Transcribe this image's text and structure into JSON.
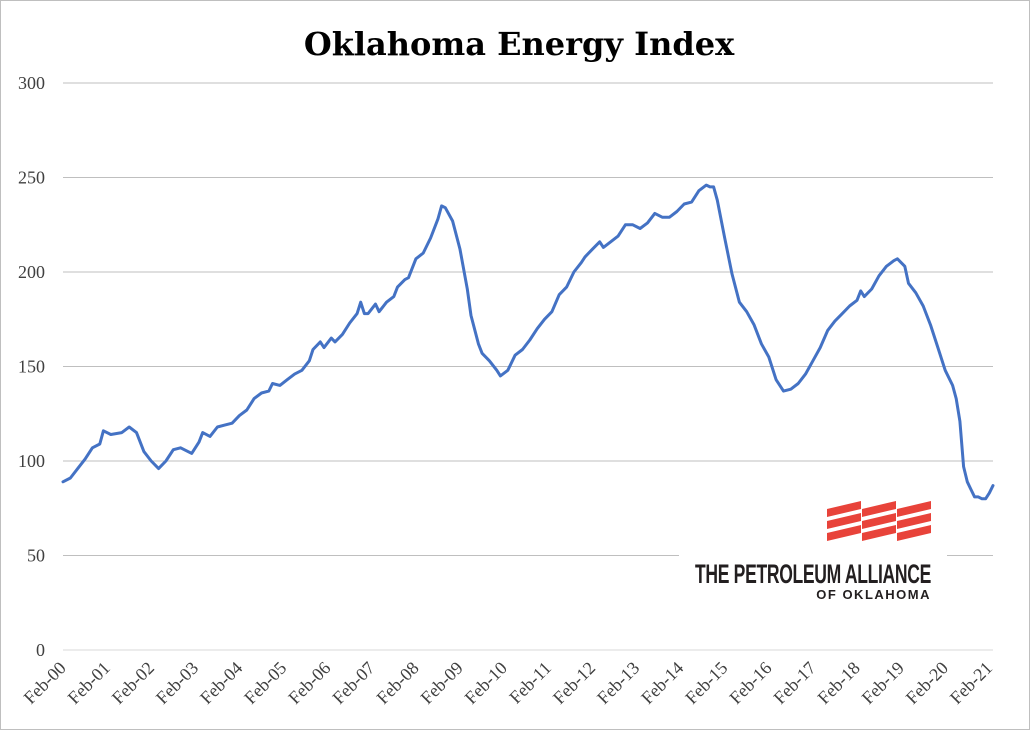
{
  "chart_data": {
    "type": "line",
    "title": "Oklahoma Energy Index",
    "xlabel": "",
    "ylabel": "",
    "ylim": [
      0,
      300
    ],
    "yticks": [
      0,
      50,
      100,
      150,
      200,
      250,
      300
    ],
    "xtick_labels": [
      "Feb-00",
      "Feb-01",
      "Feb-02",
      "Feb-03",
      "Feb-04",
      "Feb-05",
      "Feb-06",
      "Feb-07",
      "Feb-08",
      "Feb-09",
      "Feb-10",
      "Feb-11",
      "Feb-12",
      "Feb-13",
      "Feb-14",
      "Feb-15",
      "Feb-16",
      "Feb-17",
      "Feb-18",
      "Feb-19",
      "Feb-20",
      "Feb-21"
    ],
    "grid": true,
    "legend": "none",
    "series": [
      {
        "color": "#4472c4",
        "points": [
          [
            "Feb-00",
            89
          ],
          [
            "Apr-00",
            91
          ],
          [
            "Jun-00",
            96
          ],
          [
            "Aug-00",
            101
          ],
          [
            "Oct-00",
            107
          ],
          [
            "Dec-00",
            109
          ],
          [
            "Jan-01",
            116
          ],
          [
            "Mar-01",
            114
          ],
          [
            "Jun-01",
            115
          ],
          [
            "Aug-01",
            118
          ],
          [
            "Oct-01",
            115
          ],
          [
            "Dec-01",
            105
          ],
          [
            "Feb-02",
            100
          ],
          [
            "Apr-02",
            96
          ],
          [
            "Jun-02",
            100
          ],
          [
            "Aug-02",
            106
          ],
          [
            "Oct-02",
            107
          ],
          [
            "Dec-02",
            105
          ],
          [
            "Jan-03",
            104
          ],
          [
            "Mar-03",
            110
          ],
          [
            "Apr-03",
            115
          ],
          [
            "Jun-03",
            113
          ],
          [
            "Aug-03",
            118
          ],
          [
            "Oct-03",
            119
          ],
          [
            "Dec-03",
            120
          ],
          [
            "Feb-04",
            124
          ],
          [
            "Apr-04",
            127
          ],
          [
            "Jun-04",
            133
          ],
          [
            "Aug-04",
            136
          ],
          [
            "Oct-04",
            137
          ],
          [
            "Nov-04",
            141
          ],
          [
            "Jan-05",
            140
          ],
          [
            "Mar-05",
            143
          ],
          [
            "May-05",
            146
          ],
          [
            "Jul-05",
            148
          ],
          [
            "Sep-05",
            153
          ],
          [
            "Oct-05",
            159
          ],
          [
            "Dec-05",
            163
          ],
          [
            "Jan-06",
            160
          ],
          [
            "Mar-06",
            165
          ],
          [
            "Apr-06",
            163
          ],
          [
            "Jun-06",
            167
          ],
          [
            "Aug-06",
            173
          ],
          [
            "Oct-06",
            178
          ],
          [
            "Nov-06",
            184
          ],
          [
            "Dec-06",
            178
          ],
          [
            "Jan-07",
            178
          ],
          [
            "Mar-07",
            183
          ],
          [
            "Apr-07",
            179
          ],
          [
            "Jun-07",
            184
          ],
          [
            "Aug-07",
            187
          ],
          [
            "Sep-07",
            192
          ],
          [
            "Nov-07",
            196
          ],
          [
            "Dec-07",
            197
          ],
          [
            "Feb-08",
            207
          ],
          [
            "Apr-08",
            210
          ],
          [
            "Jun-08",
            218
          ],
          [
            "Aug-08",
            228
          ],
          [
            "Sep-08",
            235
          ],
          [
            "Oct-08",
            234
          ],
          [
            "Dec-08",
            227
          ],
          [
            "Feb-09",
            212
          ],
          [
            "Apr-09",
            191
          ],
          [
            "May-09",
            177
          ],
          [
            "Jul-09",
            162
          ],
          [
            "Aug-09",
            157
          ],
          [
            "Oct-09",
            153
          ],
          [
            "Dec-09",
            148
          ],
          [
            "Jan-10",
            145
          ],
          [
            "Mar-10",
            148
          ],
          [
            "May-10",
            156
          ],
          [
            "Jul-10",
            159
          ],
          [
            "Sep-10",
            164
          ],
          [
            "Nov-10",
            170
          ],
          [
            "Jan-11",
            175
          ],
          [
            "Mar-11",
            179
          ],
          [
            "May-11",
            188
          ],
          [
            "Jul-11",
            192
          ],
          [
            "Sep-11",
            200
          ],
          [
            "Nov-11",
            205
          ],
          [
            "Dec-11",
            208
          ],
          [
            "Feb-12",
            212
          ],
          [
            "Apr-12",
            216
          ],
          [
            "May-12",
            213
          ],
          [
            "Jul-12",
            216
          ],
          [
            "Sep-12",
            219
          ],
          [
            "Nov-12",
            225
          ],
          [
            "Jan-13",
            225
          ],
          [
            "Mar-13",
            223
          ],
          [
            "May-13",
            226
          ],
          [
            "Jul-13",
            231
          ],
          [
            "Sep-13",
            229
          ],
          [
            "Nov-13",
            229
          ],
          [
            "Jan-14",
            232
          ],
          [
            "Mar-14",
            236
          ],
          [
            "May-14",
            237
          ],
          [
            "Jul-14",
            243
          ],
          [
            "Sep-14",
            246
          ],
          [
            "Oct-14",
            245
          ],
          [
            "Nov-14",
            245
          ],
          [
            "Dec-14",
            238
          ],
          [
            "Feb-15",
            218
          ],
          [
            "Apr-15",
            199
          ],
          [
            "Jun-15",
            184
          ],
          [
            "Aug-15",
            179
          ],
          [
            "Oct-15",
            172
          ],
          [
            "Dec-15",
            162
          ],
          [
            "Feb-16",
            155
          ],
          [
            "Apr-16",
            143
          ],
          [
            "Jun-16",
            137
          ],
          [
            "Aug-16",
            138
          ],
          [
            "Oct-16",
            141
          ],
          [
            "Dec-16",
            146
          ],
          [
            "Feb-17",
            153
          ],
          [
            "Apr-17",
            160
          ],
          [
            "Jun-17",
            169
          ],
          [
            "Aug-17",
            174
          ],
          [
            "Oct-17",
            178
          ],
          [
            "Dec-17",
            182
          ],
          [
            "Feb-18",
            185
          ],
          [
            "Mar-18",
            190
          ],
          [
            "Apr-18",
            187
          ],
          [
            "Jun-18",
            191
          ],
          [
            "Aug-18",
            198
          ],
          [
            "Oct-18",
            203
          ],
          [
            "Dec-18",
            206
          ],
          [
            "Jan-19",
            207
          ],
          [
            "Mar-19",
            203
          ],
          [
            "Apr-19",
            194
          ],
          [
            "Jun-19",
            189
          ],
          [
            "Aug-19",
            182
          ],
          [
            "Oct-19",
            172
          ],
          [
            "Dec-19",
            160
          ],
          [
            "Feb-20",
            148
          ],
          [
            "Apr-20",
            140
          ],
          [
            "May-20",
            133
          ],
          [
            "Jun-20",
            121
          ],
          [
            "Jul-20",
            97
          ],
          [
            "Aug-20",
            89
          ],
          [
            "Sep-20",
            85
          ],
          [
            "Oct-20",
            81
          ],
          [
            "Nov-20",
            81
          ],
          [
            "Dec-20",
            80
          ],
          [
            "Jan-21",
            80
          ],
          [
            "Feb-21",
            83
          ],
          [
            "Mar-21",
            87
          ]
        ]
      }
    ]
  },
  "logo": {
    "main_text": "THE PETROLEUM ALLIANCE",
    "sub_text": "OF OKLAHOMA",
    "mark_color": "#e8433a",
    "text_color": "#231f20"
  }
}
